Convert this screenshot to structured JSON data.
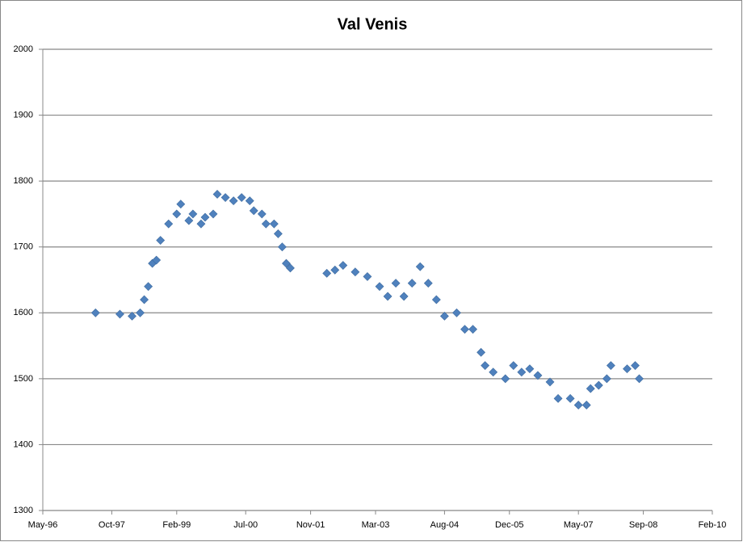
{
  "chart_data": {
    "type": "scatter",
    "title": "Val Venis",
    "x": [
      "1997-06",
      "1997-12",
      "1998-03",
      "1998-05",
      "1998-06",
      "1998-07",
      "1998-08",
      "1998-09",
      "1998-10",
      "1998-12",
      "1999-02",
      "1999-03",
      "1999-05",
      "1999-06",
      "1999-08",
      "1999-09",
      "1999-11",
      "1999-12",
      "2000-02",
      "2000-04",
      "2000-06",
      "2000-08",
      "2000-09",
      "2000-11",
      "2000-12",
      "2001-02",
      "2001-03",
      "2001-04",
      "2001-05",
      "2001-06",
      "2002-03",
      "2002-05",
      "2002-07",
      "2002-10",
      "2003-01",
      "2003-04",
      "2003-06",
      "2003-08",
      "2003-10",
      "2003-12",
      "2004-02",
      "2004-04",
      "2004-06",
      "2004-08",
      "2004-11",
      "2005-01",
      "2005-03",
      "2005-05",
      "2005-06",
      "2005-08",
      "2005-11",
      "2006-01",
      "2006-03",
      "2006-05",
      "2006-07",
      "2006-10",
      "2006-12",
      "2007-03",
      "2007-05",
      "2007-07",
      "2007-08",
      "2007-10",
      "2007-12",
      "2008-01",
      "2008-05",
      "2008-07",
      "2008-08"
    ],
    "values": [
      1600,
      1598,
      1595,
      1600,
      1620,
      1640,
      1675,
      1680,
      1710,
      1735,
      1750,
      1765,
      1740,
      1750,
      1735,
      1745,
      1750,
      1780,
      1775,
      1770,
      1775,
      1770,
      1755,
      1750,
      1735,
      1735,
      1720,
      1700,
      1675,
      1668,
      1660,
      1665,
      1672,
      1662,
      1655,
      1640,
      1625,
      1645,
      1625,
      1645,
      1670,
      1645,
      1620,
      1595,
      1600,
      1575,
      1575,
      1540,
      1520,
      1510,
      1500,
      1520,
      1510,
      1515,
      1505,
      1495,
      1470,
      1470,
      1460,
      1460,
      1485,
      1490,
      1500,
      1520,
      1515,
      1520,
      1500
    ],
    "color": "#4f81bd",
    "xlim": [
      "1996-05",
      "2010-02"
    ],
    "xticks": [
      {
        "value": "1996-05",
        "label": "May-96"
      },
      {
        "value": "1997-10",
        "label": "Oct-97"
      },
      {
        "value": "1999-02",
        "label": "Feb-99"
      },
      {
        "value": "2000-07",
        "label": "Jul-00"
      },
      {
        "value": "2001-11",
        "label": "Nov-01"
      },
      {
        "value": "2003-03",
        "label": "Mar-03"
      },
      {
        "value": "2004-08",
        "label": "Aug-04"
      },
      {
        "value": "2005-12",
        "label": "Dec-05"
      },
      {
        "value": "2007-05",
        "label": "May-07"
      },
      {
        "value": "2008-09",
        "label": "Sep-08"
      },
      {
        "value": "2010-02",
        "label": "Feb-10"
      }
    ],
    "ylim": [
      1300,
      2000
    ],
    "yticks": [
      1300,
      1400,
      1500,
      1600,
      1700,
      1800,
      1900,
      2000
    ],
    "grid": true
  }
}
